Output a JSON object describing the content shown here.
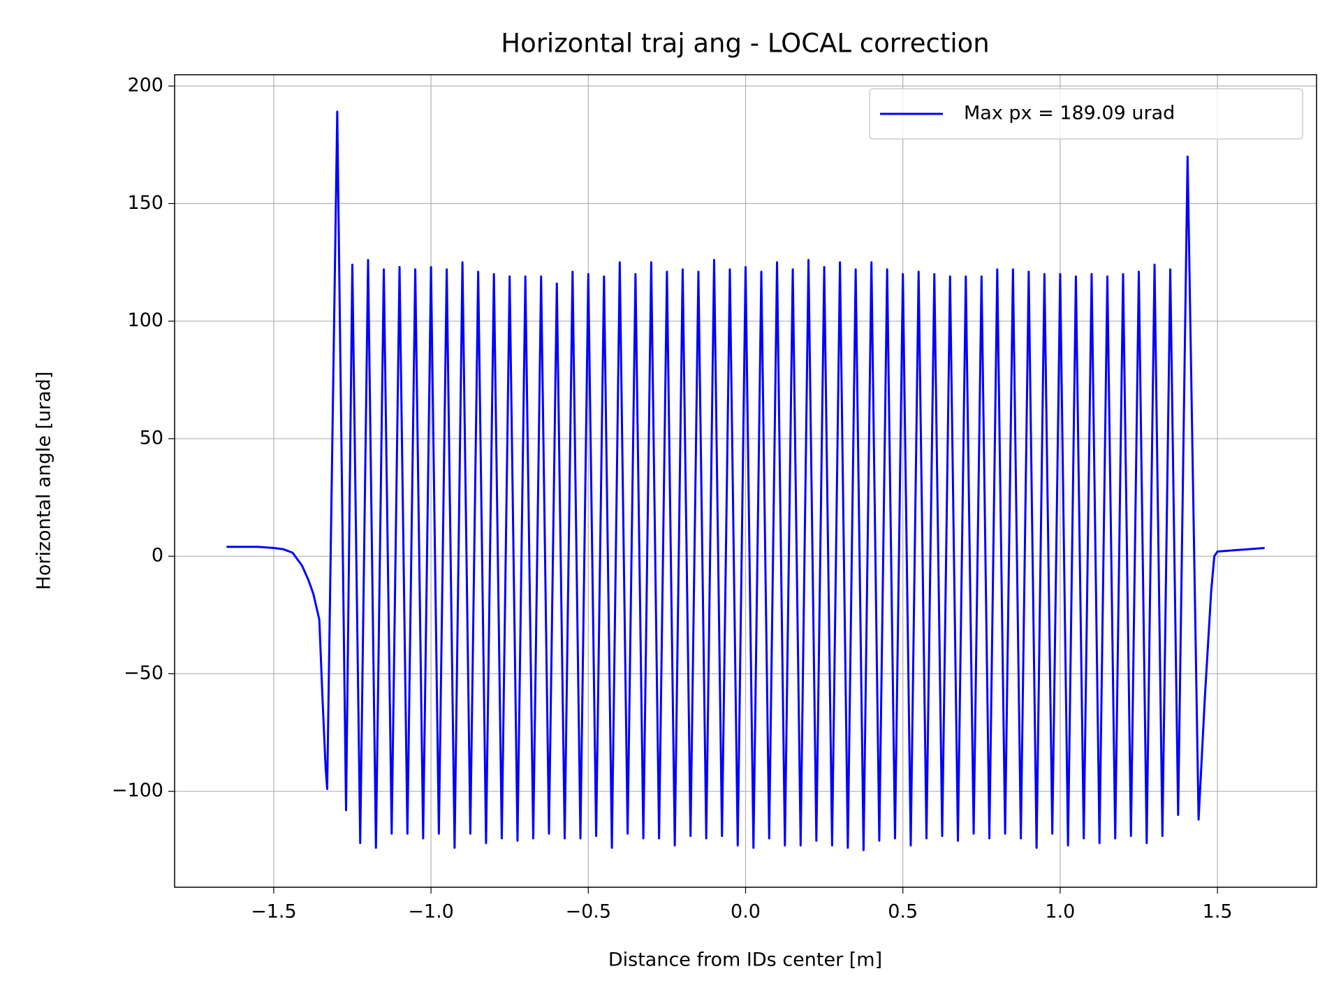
{
  "chart_data": {
    "type": "line",
    "title": "Horizontal traj ang - LOCAL correction",
    "xlabel": "Distance from IDs center [m]",
    "ylabel": "Horizontal angle [urad]",
    "x": [
      -1.65,
      -1.55,
      -1.5,
      -1.47,
      -1.44,
      -1.41,
      -1.39,
      -1.374,
      -1.355,
      -1.345,
      -1.335,
      -1.33,
      -1.298,
      -1.27,
      -1.25,
      -1.225,
      -1.2,
      -1.175,
      -1.15,
      -1.125,
      -1.1,
      -1.075,
      -1.05,
      -1.025,
      -1.0,
      -0.975,
      -0.95,
      -0.925,
      -0.9,
      -0.875,
      -0.85,
      -0.825,
      -0.8,
      -0.775,
      -0.75,
      -0.725,
      -0.7,
      -0.675,
      -0.65,
      -0.625,
      -0.6,
      -0.575,
      -0.55,
      -0.525,
      -0.5,
      -0.475,
      -0.45,
      -0.425,
      -0.4,
      -0.375,
      -0.35,
      -0.325,
      -0.3,
      -0.275,
      -0.25,
      -0.225,
      -0.2,
      -0.175,
      -0.15,
      -0.125,
      -0.1,
      -0.075,
      -0.05,
      -0.025,
      0,
      0.025,
      0.05,
      0.075,
      0.1,
      0.125,
      0.15,
      0.175,
      0.2,
      0.225,
      0.25,
      0.275,
      0.3,
      0.325,
      0.35,
      0.375,
      0.4,
      0.425,
      0.45,
      0.475,
      0.5,
      0.525,
      0.55,
      0.575,
      0.6,
      0.625,
      0.65,
      0.675,
      0.7,
      0.725,
      0.75,
      0.775,
      0.8,
      0.825,
      0.85,
      0.875,
      0.9,
      0.925,
      0.95,
      0.975,
      1.0,
      1.025,
      1.05,
      1.075,
      1.1,
      1.125,
      1.15,
      1.175,
      1.2,
      1.225,
      1.25,
      1.275,
      1.3,
      1.325,
      1.35,
      1.375,
      1.405,
      1.44,
      1.46,
      1.48,
      1.49,
      1.5,
      1.55,
      1.65
    ],
    "series": [
      {
        "name": "Max px = 189.09 urad",
        "color": "#0000ff",
        "values": [
          4,
          4,
          3.5,
          3,
          1.5,
          -4,
          -10,
          -16,
          -27,
          -60,
          -90,
          -99,
          189.09,
          -108,
          124,
          -122,
          126,
          -124,
          122,
          -118,
          123,
          -118,
          122,
          -120,
          123,
          -118,
          122,
          -124,
          125,
          -118,
          121,
          -122,
          120,
          -120,
          119,
          -121,
          119,
          -120,
          119,
          -118,
          116,
          -120,
          121,
          -120,
          120,
          -119,
          119,
          -124,
          125,
          -118,
          120,
          -120,
          125,
          -120,
          121,
          -123,
          122,
          -119,
          121,
          -120,
          126,
          -119,
          122,
          -123,
          123,
          -124,
          121,
          -120,
          125,
          -123,
          122,
          -123,
          126,
          -121,
          123,
          -123,
          125,
          -124,
          122,
          -125,
          125,
          -121,
          122,
          -120,
          120,
          -123,
          121,
          -120,
          120,
          -119,
          119,
          -121,
          119,
          -118,
          119,
          -120,
          122,
          -118,
          122,
          -120,
          121,
          -124,
          120,
          -118,
          120,
          -123,
          119,
          -120,
          120,
          -122,
          119,
          -120,
          120,
          -119,
          121,
          -122,
          124,
          -119,
          122,
          -110,
          170,
          -112,
          -60,
          -15,
          0,
          2,
          2.5,
          3.5
        ]
      }
    ],
    "xlim": [
      -1.815,
      1.815
    ],
    "ylim": [
      -140.8,
      204.8
    ],
    "xticks": [
      {
        "value": -1.5,
        "label": "−1.5"
      },
      {
        "value": -1.0,
        "label": "−1.0"
      },
      {
        "value": -0.5,
        "label": "−0.5"
      },
      {
        "value": 0,
        "label": "0.0"
      },
      0.5,
      {
        "value": 1.0,
        "label": "1.0"
      },
      1.5
    ],
    "yticks": [
      {
        "value": -100,
        "label": "−100"
      },
      {
        "value": -50,
        "label": "−50"
      },
      0,
      50,
      100,
      150,
      200
    ],
    "grid": true,
    "legend": "upper right"
  }
}
